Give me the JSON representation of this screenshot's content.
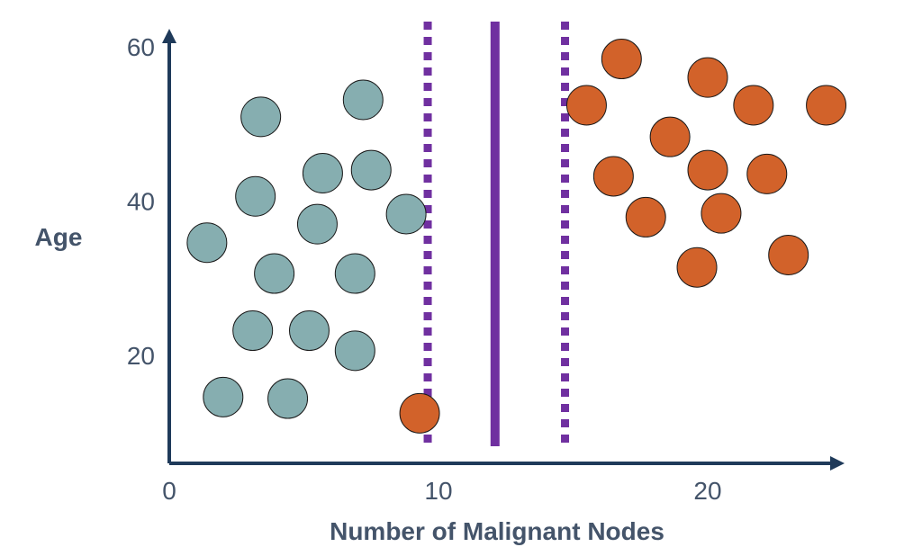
{
  "chart_data": {
    "type": "scatter",
    "title": "",
    "xlabel": "Number of Malignant Nodes",
    "ylabel": "Age",
    "xlim": [
      0,
      25
    ],
    "ylim": [
      8,
      62
    ],
    "x_ticks": [
      {
        "value": 0,
        "label": "0"
      },
      {
        "value": 10,
        "label": "10"
      },
      {
        "value": 20,
        "label": "20"
      }
    ],
    "y_ticks": [
      {
        "value": 20,
        "label": "20"
      },
      {
        "value": 40,
        "label": "40"
      },
      {
        "value": 60,
        "label": "60"
      }
    ],
    "grid": false,
    "series": [
      {
        "color": "#86aeb0",
        "points": [
          {
            "x": 1.4,
            "y": 34.6
          },
          {
            "x": 2.0,
            "y": 14.6
          },
          {
            "x": 3.1,
            "y": 23.2
          },
          {
            "x": 3.2,
            "y": 40.6
          },
          {
            "x": 3.4,
            "y": 50.9
          },
          {
            "x": 3.9,
            "y": 30.6
          },
          {
            "x": 4.4,
            "y": 14.4
          },
          {
            "x": 5.2,
            "y": 23.2
          },
          {
            "x": 5.5,
            "y": 37.0
          },
          {
            "x": 5.7,
            "y": 43.6
          },
          {
            "x": 6.9,
            "y": 20.6
          },
          {
            "x": 6.9,
            "y": 30.6
          },
          {
            "x": 7.2,
            "y": 53.1
          },
          {
            "x": 7.5,
            "y": 44.0
          },
          {
            "x": 8.8,
            "y": 38.3
          }
        ]
      },
      {
        "color": "#d2622a",
        "points": [
          {
            "x": 9.3,
            "y": 12.5
          },
          {
            "x": 15.5,
            "y": 52.4
          },
          {
            "x": 16.5,
            "y": 43.2
          },
          {
            "x": 16.8,
            "y": 58.4
          },
          {
            "x": 17.7,
            "y": 37.9
          },
          {
            "x": 18.6,
            "y": 48.3
          },
          {
            "x": 19.6,
            "y": 31.4
          },
          {
            "x": 20.0,
            "y": 44.0
          },
          {
            "x": 20.0,
            "y": 56.0
          },
          {
            "x": 20.5,
            "y": 38.4
          },
          {
            "x": 21.7,
            "y": 52.4
          },
          {
            "x": 22.2,
            "y": 43.5
          },
          {
            "x": 23.0,
            "y": 33.0
          },
          {
            "x": 24.4,
            "y": 52.4
          }
        ]
      }
    ],
    "vertical_lines": [
      {
        "x": 9.6,
        "style": "dotted",
        "color": "#7030a0"
      },
      {
        "x": 12.1,
        "style": "solid",
        "color": "#7030a0"
      },
      {
        "x": 14.7,
        "style": "dotted",
        "color": "#7030a0"
      }
    ]
  }
}
